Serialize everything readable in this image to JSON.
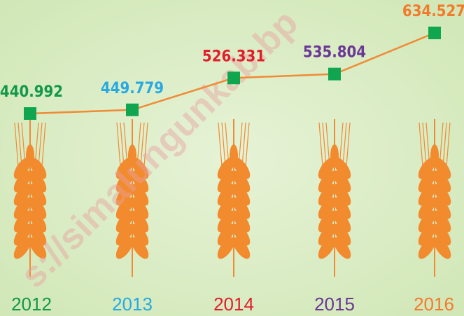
{
  "chart_data": {
    "type": "line",
    "categories": [
      "2012",
      "2013",
      "2014",
      "2015",
      "2016"
    ],
    "values": [
      440.992,
      449.779,
      526.331,
      535.804,
      634.527
    ],
    "label_colors": [
      "#13984a",
      "#27a9e1",
      "#e11f2c",
      "#6b3696",
      "#f47a2b"
    ],
    "line_color": "#f08a35",
    "marker_color": "#10a650",
    "watermark": "s://simalungunkab.bp"
  }
}
